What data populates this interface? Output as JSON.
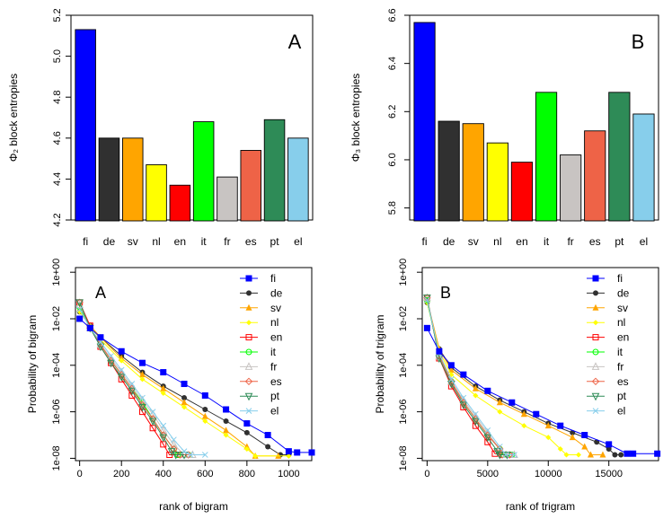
{
  "language_colors": {
    "fi": "#0000FF",
    "de": "#303030",
    "sv": "#FFA500",
    "nl": "#FFFF00",
    "en": "#FF0000",
    "it": "#00FF00",
    "fr": "#C8C4C2",
    "es": "#EE6347",
    "pt": "#2E8B57",
    "el": "#87CEEB"
  },
  "chart_data": [
    {
      "type": "bar",
      "panel_letter": "A",
      "ylabel": "Φ₂ block entropies",
      "categories": [
        "fi",
        "de",
        "sv",
        "nl",
        "en",
        "it",
        "fr",
        "es",
        "pt",
        "el"
      ],
      "values": [
        5.13,
        4.6,
        4.6,
        4.47,
        4.37,
        4.68,
        4.41,
        4.54,
        4.69,
        4.6
      ],
      "ylim": [
        4.2,
        5.2
      ],
      "yticks": [
        "4.2",
        "4.4",
        "4.6",
        "4.8",
        "5.0",
        "5.2"
      ],
      "grid": false
    },
    {
      "type": "bar",
      "panel_letter": "B",
      "ylabel": "Φ₃ block entropies",
      "categories": [
        "fi",
        "de",
        "sv",
        "nl",
        "en",
        "it",
        "fr",
        "es",
        "pt",
        "el"
      ],
      "values": [
        6.57,
        6.16,
        6.15,
        6.07,
        5.99,
        6.28,
        6.02,
        6.12,
        6.28,
        6.19
      ],
      "ylim": [
        5.75,
        6.6
      ],
      "yticks": [
        "5.8",
        "6.0",
        "6.2",
        "6.4",
        "6.6"
      ],
      "grid": false
    },
    {
      "type": "line",
      "panel_letter": "A",
      "xlabel": "rank of bigram",
      "ylabel": "Probability of bigram",
      "y_scale": "log",
      "xlim": [
        -20,
        1110
      ],
      "ylim_log10": [
        -8.1,
        0.2
      ],
      "xticks": [
        "0",
        "200",
        "400",
        "600",
        "800",
        "1000"
      ],
      "yticks": [
        "1e-08",
        "1e-06",
        "1e-04",
        "1e-02",
        "1e+00"
      ],
      "legend_position": "top-right",
      "grid": false,
      "series": [
        {
          "name": "fi",
          "marker": "square",
          "points": [
            [
              0,
              -2.0
            ],
            [
              50,
              -2.4
            ],
            [
              100,
              -2.8
            ],
            [
              200,
              -3.4
            ],
            [
              300,
              -3.9
            ],
            [
              400,
              -4.3
            ],
            [
              500,
              -4.8
            ],
            [
              600,
              -5.3
            ],
            [
              700,
              -5.9
            ],
            [
              800,
              -6.5
            ],
            [
              900,
              -7.0
            ],
            [
              1000,
              -7.7
            ],
            [
              1040,
              -7.75
            ],
            [
              1110,
              -7.75
            ]
          ]
        },
        {
          "name": "de",
          "marker": "circle",
          "points": [
            [
              0,
              -1.7
            ],
            [
              50,
              -2.3
            ],
            [
              100,
              -2.8
            ],
            [
              200,
              -3.6
            ],
            [
              300,
              -4.3
            ],
            [
              400,
              -4.9
            ],
            [
              500,
              -5.4
            ],
            [
              600,
              -5.9
            ],
            [
              700,
              -6.4
            ],
            [
              800,
              -6.9
            ],
            [
              900,
              -7.5
            ],
            [
              960,
              -7.85
            ],
            [
              1000,
              -7.85
            ]
          ]
        },
        {
          "name": "sv",
          "marker": "triangle-up",
          "points": [
            [
              0,
              -1.6
            ],
            [
              50,
              -2.3
            ],
            [
              100,
              -2.8
            ],
            [
              200,
              -3.7
            ],
            [
              300,
              -4.4
            ],
            [
              400,
              -5.0
            ],
            [
              500,
              -5.6
            ],
            [
              600,
              -6.2
            ],
            [
              700,
              -6.8
            ],
            [
              800,
              -7.5
            ],
            [
              840,
              -7.9
            ],
            [
              950,
              -7.9
            ]
          ]
        },
        {
          "name": "nl",
          "marker": "diamond-filled",
          "points": [
            [
              0,
              -1.7
            ],
            [
              50,
              -2.3
            ],
            [
              100,
              -2.9
            ],
            [
              200,
              -3.8
            ],
            [
              300,
              -4.6
            ],
            [
              400,
              -5.2
            ],
            [
              500,
              -5.8
            ],
            [
              600,
              -6.4
            ],
            [
              700,
              -7.0
            ],
            [
              800,
              -7.6
            ],
            [
              840,
              -7.9
            ],
            [
              1000,
              -7.9
            ]
          ]
        },
        {
          "name": "en",
          "marker": "square-open",
          "points": [
            [
              0,
              -1.3
            ],
            [
              50,
              -2.3
            ],
            [
              100,
              -3.2
            ],
            [
              150,
              -3.9
            ],
            [
              200,
              -4.6
            ],
            [
              250,
              -5.3
            ],
            [
              300,
              -6.0
            ],
            [
              350,
              -6.7
            ],
            [
              400,
              -7.4
            ],
            [
              430,
              -7.85
            ],
            [
              480,
              -7.85
            ]
          ]
        },
        {
          "name": "it",
          "marker": "circle-open",
          "points": [
            [
              0,
              -1.5
            ],
            [
              50,
              -2.4
            ],
            [
              100,
              -3.1
            ],
            [
              150,
              -3.8
            ],
            [
              200,
              -4.4
            ],
            [
              250,
              -5.0
            ],
            [
              300,
              -5.6
            ],
            [
              350,
              -6.3
            ],
            [
              400,
              -7.0
            ],
            [
              450,
              -7.6
            ],
            [
              470,
              -7.85
            ],
            [
              520,
              -7.85
            ]
          ]
        },
        {
          "name": "fr",
          "marker": "triangle-open",
          "points": [
            [
              0,
              -1.4
            ],
            [
              50,
              -2.4
            ],
            [
              100,
              -3.1
            ],
            [
              150,
              -3.7
            ],
            [
              200,
              -4.3
            ],
            [
              250,
              -4.9
            ],
            [
              300,
              -5.5
            ],
            [
              350,
              -6.1
            ],
            [
              400,
              -6.8
            ],
            [
              450,
              -7.4
            ],
            [
              500,
              -7.85
            ],
            [
              540,
              -7.85
            ]
          ]
        },
        {
          "name": "es",
          "marker": "diamond-open",
          "points": [
            [
              0,
              -1.3
            ],
            [
              50,
              -2.4
            ],
            [
              100,
              -3.1
            ],
            [
              150,
              -3.8
            ],
            [
              200,
              -4.4
            ],
            [
              250,
              -5.0
            ],
            [
              300,
              -5.7
            ],
            [
              350,
              -6.3
            ],
            [
              400,
              -7.0
            ],
            [
              450,
              -7.6
            ],
            [
              480,
              -7.85
            ],
            [
              520,
              -7.85
            ]
          ]
        },
        {
          "name": "pt",
          "marker": "triangle-down-open",
          "points": [
            [
              0,
              -1.3
            ],
            [
              50,
              -2.4
            ],
            [
              100,
              -3.2
            ],
            [
              150,
              -3.9
            ],
            [
              200,
              -4.5
            ],
            [
              250,
              -5.1
            ],
            [
              300,
              -5.8
            ],
            [
              350,
              -6.4
            ],
            [
              400,
              -7.1
            ],
            [
              440,
              -7.7
            ],
            [
              460,
              -7.85
            ],
            [
              500,
              -7.85
            ]
          ]
        },
        {
          "name": "el",
          "marker": "cross",
          "points": [
            [
              0,
              -1.6
            ],
            [
              50,
              -2.4
            ],
            [
              100,
              -3.0
            ],
            [
              150,
              -3.6
            ],
            [
              200,
              -4.2
            ],
            [
              250,
              -4.8
            ],
            [
              300,
              -5.4
            ],
            [
              350,
              -6.0
            ],
            [
              400,
              -6.6
            ],
            [
              450,
              -7.2
            ],
            [
              500,
              -7.7
            ],
            [
              530,
              -7.85
            ],
            [
              600,
              -7.85
            ]
          ]
        }
      ]
    },
    {
      "type": "line",
      "panel_letter": "B",
      "xlabel": "rank of trigram",
      "ylabel": "Probability of trigram",
      "y_scale": "log",
      "xlim": [
        -400,
        19100
      ],
      "ylim_log10": [
        -8.1,
        0.2
      ],
      "xticks": [
        "0",
        "5000",
        "10000",
        "15000"
      ],
      "yticks": [
        "1e-08",
        "1e-06",
        "1e-04",
        "1e-02",
        "1e+00"
      ],
      "legend_position": "top-right",
      "grid": false,
      "series": [
        {
          "name": "fi",
          "marker": "square",
          "points": [
            [
              0,
              -2.4
            ],
            [
              1000,
              -3.4
            ],
            [
              2000,
              -4.0
            ],
            [
              3000,
              -4.4
            ],
            [
              5000,
              -5.1
            ],
            [
              7000,
              -5.6
            ],
            [
              9000,
              -6.1
            ],
            [
              11000,
              -6.6
            ],
            [
              13000,
              -7.0
            ],
            [
              15000,
              -7.4
            ],
            [
              16500,
              -7.8
            ],
            [
              17000,
              -7.8
            ],
            [
              19000,
              -7.8
            ]
          ]
        },
        {
          "name": "de",
          "marker": "circle",
          "points": [
            [
              0,
              -1.3
            ],
            [
              1000,
              -3.3
            ],
            [
              2000,
              -4.1
            ],
            [
              4000,
              -4.9
            ],
            [
              6000,
              -5.5
            ],
            [
              8000,
              -6.0
            ],
            [
              10000,
              -6.5
            ],
            [
              12000,
              -6.9
            ],
            [
              14000,
              -7.3
            ],
            [
              15000,
              -7.6
            ],
            [
              15500,
              -7.85
            ],
            [
              16000,
              -7.85
            ]
          ]
        },
        {
          "name": "sv",
          "marker": "triangle-up",
          "points": [
            [
              0,
              -1.2
            ],
            [
              1000,
              -3.3
            ],
            [
              2000,
              -4.2
            ],
            [
              4000,
              -5.0
            ],
            [
              6000,
              -5.6
            ],
            [
              8000,
              -6.1
            ],
            [
              10000,
              -6.6
            ],
            [
              12000,
              -7.1
            ],
            [
              13000,
              -7.5
            ],
            [
              13500,
              -7.85
            ],
            [
              14500,
              -7.85
            ]
          ]
        },
        {
          "name": "nl",
          "marker": "diamond-filled",
          "points": [
            [
              0,
              -1.3
            ],
            [
              1000,
              -3.4
            ],
            [
              2000,
              -4.4
            ],
            [
              4000,
              -5.3
            ],
            [
              6000,
              -6.0
            ],
            [
              8000,
              -6.6
            ],
            [
              10000,
              -7.1
            ],
            [
              11000,
              -7.6
            ],
            [
              11500,
              -7.85
            ],
            [
              12500,
              -7.85
            ]
          ]
        },
        {
          "name": "en",
          "marker": "square-open",
          "points": [
            [
              0,
              -1.1
            ],
            [
              1000,
              -3.7
            ],
            [
              2000,
              -4.9
            ],
            [
              3000,
              -5.8
            ],
            [
              4000,
              -6.6
            ],
            [
              5000,
              -7.3
            ],
            [
              5600,
              -7.8
            ],
            [
              6200,
              -7.85
            ],
            [
              6800,
              -7.85
            ]
          ]
        },
        {
          "name": "it",
          "marker": "circle-open",
          "points": [
            [
              0,
              -1.2
            ],
            [
              1000,
              -3.6
            ],
            [
              2000,
              -4.7
            ],
            [
              3000,
              -5.6
            ],
            [
              4000,
              -6.3
            ],
            [
              5000,
              -7.0
            ],
            [
              6000,
              -7.6
            ],
            [
              6300,
              -7.85
            ],
            [
              7000,
              -7.85
            ]
          ]
        },
        {
          "name": "fr",
          "marker": "triangle-open",
          "points": [
            [
              0,
              -1.1
            ],
            [
              1000,
              -3.6
            ],
            [
              2000,
              -4.7
            ],
            [
              3000,
              -5.5
            ],
            [
              4000,
              -6.2
            ],
            [
              5000,
              -6.9
            ],
            [
              6000,
              -7.6
            ],
            [
              6500,
              -7.85
            ],
            [
              7200,
              -7.85
            ]
          ]
        },
        {
          "name": "es",
          "marker": "diamond-open",
          "points": [
            [
              0,
              -1.1
            ],
            [
              1000,
              -3.6
            ],
            [
              2000,
              -4.7
            ],
            [
              3000,
              -5.6
            ],
            [
              4000,
              -6.3
            ],
            [
              5000,
              -7.0
            ],
            [
              6000,
              -7.6
            ],
            [
              6200,
              -7.85
            ],
            [
              6800,
              -7.85
            ]
          ]
        },
        {
          "name": "pt",
          "marker": "triangle-down-open",
          "points": [
            [
              0,
              -1.1
            ],
            [
              1000,
              -3.7
            ],
            [
              2000,
              -4.8
            ],
            [
              3000,
              -5.7
            ],
            [
              4000,
              -6.4
            ],
            [
              5000,
              -7.1
            ],
            [
              5800,
              -7.7
            ],
            [
              6000,
              -7.85
            ],
            [
              6600,
              -7.85
            ]
          ]
        },
        {
          "name": "el",
          "marker": "cross",
          "points": [
            [
              0,
              -1.2
            ],
            [
              1000,
              -3.5
            ],
            [
              2000,
              -4.6
            ],
            [
              3000,
              -5.4
            ],
            [
              4000,
              -6.1
            ],
            [
              5000,
              -6.8
            ],
            [
              6000,
              -7.5
            ],
            [
              6500,
              -7.85
            ],
            [
              7200,
              -7.85
            ]
          ]
        }
      ]
    }
  ]
}
